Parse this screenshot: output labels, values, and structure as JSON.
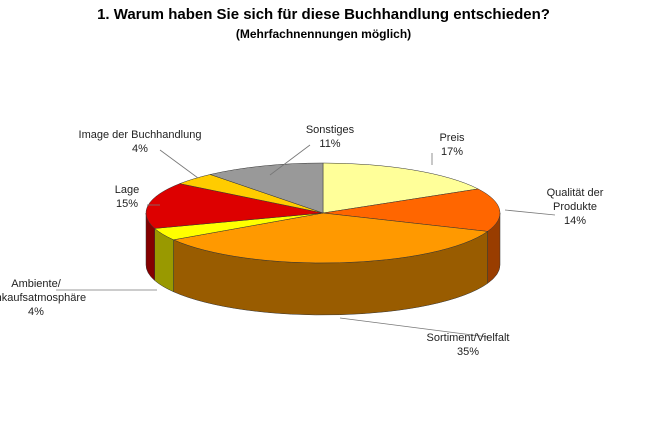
{
  "chart_data": {
    "type": "pie3d",
    "title": "1. Warum haben Sie sich für diese Buchhandlung entschieden?",
    "subtitle": "(Mehrfachnennungen möglich)",
    "categories": [
      "Preis",
      "Qualität der Produkte",
      "Sortiment/Vielfalt",
      "Ambiente/\nEinkaufsatmosphäre",
      "Lage",
      "Image der Buchhandlung",
      "Sonstiges"
    ],
    "values": [
      17,
      14,
      35,
      4,
      15,
      4,
      11
    ],
    "value_labels": [
      "17%",
      "14%",
      "35%",
      "4%",
      "15%",
      "4%",
      "11%"
    ],
    "colors": [
      "#ffff99",
      "#ff6600",
      "#ff9900",
      "#ffff00",
      "#dd0000",
      "#ffcc00",
      "#999999"
    ]
  }
}
